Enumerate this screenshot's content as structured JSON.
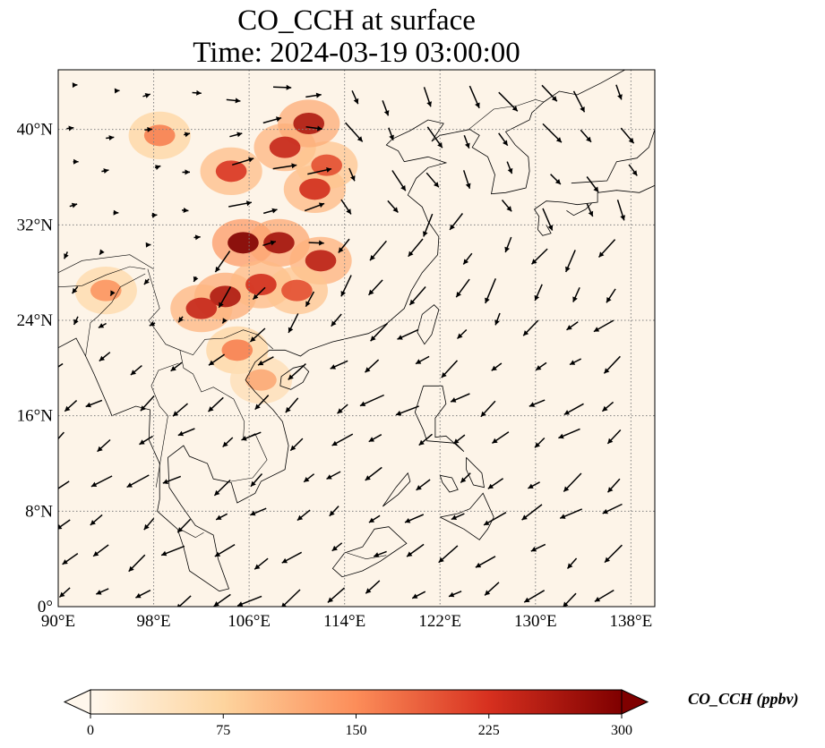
{
  "figure": {
    "title_line1": "CO_CCH at surface",
    "title_line2": "Time: 2024-03-19 03:00:00",
    "variable": "CO_CCH",
    "level": "surface",
    "time": "2024-03-19 03:00:00"
  },
  "map": {
    "projection": "PlateCarree",
    "lon_range": [
      90,
      140
    ],
    "lat_range": [
      0,
      45
    ],
    "lon_ticks": [
      "90°E",
      "98°E",
      "106°E",
      "114°E",
      "122°E",
      "130°E",
      "138°E"
    ],
    "lon_tick_values": [
      90,
      98,
      106,
      114,
      122,
      130,
      138
    ],
    "lat_ticks": [
      "0°",
      "8°N",
      "16°N",
      "24°N",
      "32°N",
      "40°N"
    ],
    "lat_tick_values": [
      0,
      8,
      16,
      24,
      32,
      40
    ],
    "gridlines": true,
    "gridline_style": "dotted",
    "coastlines": true,
    "borders": true,
    "wind_vectors": true,
    "colors": {
      "background": "#fdf4e8",
      "coast": "#000000",
      "grid": "#888888",
      "arrow": "#000000"
    }
  },
  "chart_data": {
    "type": "heatmap",
    "title": "CO_CCH at surface",
    "subtitle": "Time: 2024-03-19 03:00:00",
    "xlabel": "",
    "ylabel": "",
    "xlim": [
      90,
      140
    ],
    "ylim": [
      0,
      45
    ],
    "colormap": "OrRd",
    "value_range": [
      0,
      300
    ],
    "hotspots": [
      {
        "lon": 105.5,
        "lat": 30.5,
        "value": 300
      },
      {
        "lon": 108.5,
        "lat": 30.5,
        "value": 270
      },
      {
        "lon": 112.0,
        "lat": 29.0,
        "value": 250
      },
      {
        "lon": 104.0,
        "lat": 26.0,
        "value": 260
      },
      {
        "lon": 107.0,
        "lat": 27.0,
        "value": 230
      },
      {
        "lon": 110.0,
        "lat": 26.5,
        "value": 200
      },
      {
        "lon": 102.0,
        "lat": 25.0,
        "value": 240
      },
      {
        "lon": 104.5,
        "lat": 36.5,
        "value": 220
      },
      {
        "lon": 109.0,
        "lat": 38.5,
        "value": 240
      },
      {
        "lon": 111.5,
        "lat": 35.0,
        "value": 230
      },
      {
        "lon": 112.5,
        "lat": 37.0,
        "value": 200
      },
      {
        "lon": 111.0,
        "lat": 40.5,
        "value": 260
      },
      {
        "lon": 105.0,
        "lat": 21.5,
        "value": 160
      },
      {
        "lon": 107.0,
        "lat": 19.0,
        "value": 120
      },
      {
        "lon": 94.0,
        "lat": 26.5,
        "value": 140
      },
      {
        "lon": 98.5,
        "lat": 39.5,
        "value": 160
      }
    ],
    "colorbar": {
      "label": "CO_CCH (ppbv)",
      "ticks": [
        "0",
        "75",
        "150",
        "225",
        "300"
      ],
      "tick_values": [
        0,
        75,
        150,
        225,
        300
      ],
      "extend": "both",
      "orientation": "horizontal"
    }
  }
}
